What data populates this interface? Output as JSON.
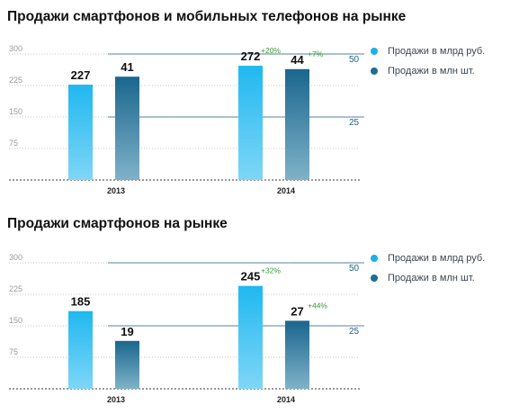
{
  "colors": {
    "bar_light_top": "#20b8f0",
    "bar_light_bottom": "#7fd6f7",
    "bar_dark_top": "#1a668e",
    "bar_dark_bottom": "#7fb2c8",
    "legend_light": "#1cb0ea",
    "legend_dark": "#1b6d92",
    "growth": "#3a9a3a"
  },
  "chart_data": [
    {
      "type": "bar",
      "title": "Продажи смартфонов и мобильных телефонов на рынке",
      "categories": [
        "2013",
        "2014"
      ],
      "left_axis": {
        "ticks": [
          75,
          150,
          225,
          300
        ],
        "range": [
          0,
          300
        ]
      },
      "right_axis": {
        "ticks": [
          25,
          50
        ],
        "range": [
          0,
          100
        ]
      },
      "legend_placement": "right",
      "series": [
        {
          "name": "Продажи в млрд руб.",
          "axis": "left",
          "values": [
            227,
            272
          ],
          "labels": [
            "227",
            "272"
          ],
          "growth": [
            "",
            "+20%"
          ]
        },
        {
          "name": "Продажи в млн шт.",
          "axis": "right",
          "values": [
            41,
            44
          ],
          "labels": [
            "41",
            "44"
          ],
          "growth": [
            "",
            "+7%"
          ]
        }
      ]
    },
    {
      "type": "bar",
      "title": "Продажи смартфонов на рынке",
      "categories": [
        "2013",
        "2014"
      ],
      "left_axis": {
        "ticks": [
          75,
          150,
          225,
          300
        ],
        "range": [
          0,
          300
        ]
      },
      "right_axis": {
        "ticks": [
          25,
          50
        ],
        "range": [
          0,
          100
        ]
      },
      "legend_placement": "right",
      "series": [
        {
          "name": "Продажи в млрд руб.",
          "axis": "left",
          "values": [
            185,
            245
          ],
          "labels": [
            "185",
            "245"
          ],
          "growth": [
            "",
            "+32%"
          ]
        },
        {
          "name": "Продажи в млн шт.",
          "axis": "right",
          "values": [
            19,
            27
          ],
          "labels": [
            "19",
            "27"
          ],
          "growth": [
            "",
            "+44%"
          ]
        }
      ]
    }
  ]
}
